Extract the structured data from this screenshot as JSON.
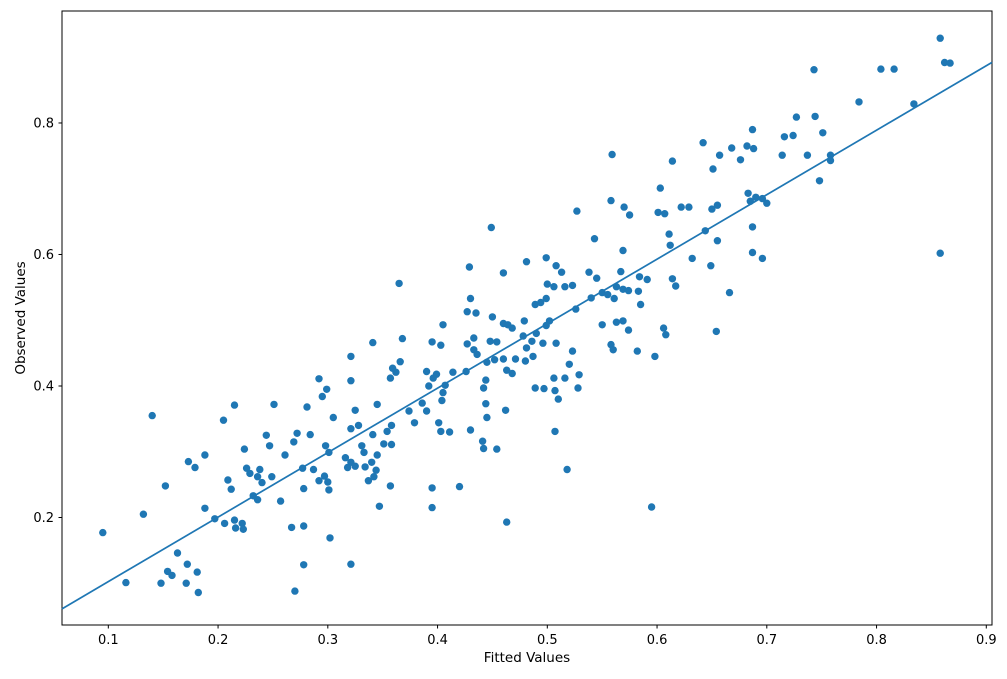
{
  "figure": {
    "background": "#ffffff",
    "xlabel": "Fitted Values",
    "ylabel": "Observed Values"
  },
  "chart_data": {
    "type": "scatter",
    "title": "",
    "xlabel": "Fitted Values",
    "ylabel": "Observed Values",
    "xlim": [
      0.0578,
      0.9052
    ],
    "ylim": [
      0.0365,
      0.9703
    ],
    "xticks": [
      0.1,
      0.2,
      0.3,
      0.4,
      0.5,
      0.6,
      0.7,
      0.8,
      0.9
    ],
    "xtick_labels": [
      "0.1",
      "0.2",
      "0.3",
      "0.4",
      "0.5",
      "0.6",
      "0.7",
      "0.8",
      "0.9"
    ],
    "yticks": [
      0.2,
      0.4,
      0.6,
      0.8
    ],
    "ytick_labels": [
      "0.2",
      "0.4",
      "0.6",
      "0.8"
    ],
    "grid": false,
    "legend": "none",
    "marker_color": "#1f77b4",
    "line_color": "#1f77b4",
    "fit_line": {
      "slope": 0.9808,
      "intercept": 0.0044
    },
    "points": [
      [
        0.858,
        0.929
      ],
      [
        0.862,
        0.892
      ],
      [
        0.867,
        0.891
      ],
      [
        0.743,
        0.881
      ],
      [
        0.804,
        0.882
      ],
      [
        0.816,
        0.882
      ],
      [
        0.784,
        0.832
      ],
      [
        0.834,
        0.829
      ],
      [
        0.727,
        0.809
      ],
      [
        0.744,
        0.81
      ],
      [
        0.751,
        0.785
      ],
      [
        0.716,
        0.779
      ],
      [
        0.724,
        0.781
      ],
      [
        0.682,
        0.765
      ],
      [
        0.688,
        0.761
      ],
      [
        0.714,
        0.751
      ],
      [
        0.737,
        0.751
      ],
      [
        0.758,
        0.751
      ],
      [
        0.758,
        0.743
      ],
      [
        0.748,
        0.712
      ],
      [
        0.7,
        0.678
      ],
      [
        0.696,
        0.685
      ],
      [
        0.858,
        0.602
      ],
      [
        0.559,
        0.752
      ],
      [
        0.614,
        0.742
      ],
      [
        0.642,
        0.77
      ],
      [
        0.651,
        0.73
      ],
      [
        0.657,
        0.751
      ],
      [
        0.668,
        0.762
      ],
      [
        0.676,
        0.744
      ],
      [
        0.687,
        0.79
      ],
      [
        0.683,
        0.693
      ],
      [
        0.685,
        0.681
      ],
      [
        0.69,
        0.687
      ],
      [
        0.603,
        0.701
      ],
      [
        0.558,
        0.682
      ],
      [
        0.527,
        0.666
      ],
      [
        0.57,
        0.672
      ],
      [
        0.575,
        0.66
      ],
      [
        0.601,
        0.664
      ],
      [
        0.607,
        0.662
      ],
      [
        0.622,
        0.672
      ],
      [
        0.629,
        0.672
      ],
      [
        0.65,
        0.669
      ],
      [
        0.655,
        0.675
      ],
      [
        0.687,
        0.603
      ],
      [
        0.543,
        0.624
      ],
      [
        0.611,
        0.631
      ],
      [
        0.612,
        0.614
      ],
      [
        0.644,
        0.636
      ],
      [
        0.655,
        0.621
      ],
      [
        0.687,
        0.642
      ],
      [
        0.569,
        0.606
      ],
      [
        0.632,
        0.594
      ],
      [
        0.649,
        0.583
      ],
      [
        0.481,
        0.589
      ],
      [
        0.499,
        0.595
      ],
      [
        0.508,
        0.583
      ],
      [
        0.513,
        0.573
      ],
      [
        0.538,
        0.573
      ],
      [
        0.545,
        0.564
      ],
      [
        0.567,
        0.574
      ],
      [
        0.584,
        0.566
      ],
      [
        0.591,
        0.562
      ],
      [
        0.583,
        0.544
      ],
      [
        0.614,
        0.563
      ],
      [
        0.617,
        0.552
      ],
      [
        0.5,
        0.555
      ],
      [
        0.506,
        0.551
      ],
      [
        0.516,
        0.551
      ],
      [
        0.523,
        0.553
      ],
      [
        0.55,
        0.542
      ],
      [
        0.555,
        0.539
      ],
      [
        0.563,
        0.551
      ],
      [
        0.569,
        0.547
      ],
      [
        0.574,
        0.545
      ],
      [
        0.54,
        0.534
      ],
      [
        0.561,
        0.533
      ],
      [
        0.585,
        0.524
      ],
      [
        0.489,
        0.524
      ],
      [
        0.494,
        0.527
      ],
      [
        0.499,
        0.533
      ],
      [
        0.526,
        0.517
      ],
      [
        0.666,
        0.542
      ],
      [
        0.502,
        0.499
      ],
      [
        0.499,
        0.492
      ],
      [
        0.479,
        0.499
      ],
      [
        0.49,
        0.48
      ],
      [
        0.486,
        0.468
      ],
      [
        0.508,
        0.465
      ],
      [
        0.55,
        0.493
      ],
      [
        0.563,
        0.497
      ],
      [
        0.569,
        0.499
      ],
      [
        0.574,
        0.485
      ],
      [
        0.606,
        0.488
      ],
      [
        0.608,
        0.478
      ],
      [
        0.654,
        0.483
      ],
      [
        0.558,
        0.463
      ],
      [
        0.56,
        0.455
      ],
      [
        0.582,
        0.453
      ],
      [
        0.523,
        0.453
      ],
      [
        0.52,
        0.433
      ],
      [
        0.598,
        0.445
      ],
      [
        0.481,
        0.458
      ],
      [
        0.496,
        0.465
      ],
      [
        0.506,
        0.412
      ],
      [
        0.516,
        0.412
      ],
      [
        0.529,
        0.417
      ],
      [
        0.528,
        0.397
      ],
      [
        0.489,
        0.397
      ],
      [
        0.497,
        0.396
      ],
      [
        0.507,
        0.393
      ],
      [
        0.51,
        0.38
      ],
      [
        0.696,
        0.594
      ],
      [
        0.449,
        0.641
      ],
      [
        0.429,
        0.581
      ],
      [
        0.46,
        0.572
      ],
      [
        0.365,
        0.556
      ],
      [
        0.43,
        0.533
      ],
      [
        0.427,
        0.513
      ],
      [
        0.435,
        0.511
      ],
      [
        0.45,
        0.505
      ],
      [
        0.46,
        0.495
      ],
      [
        0.464,
        0.493
      ],
      [
        0.468,
        0.488
      ],
      [
        0.405,
        0.493
      ],
      [
        0.478,
        0.476
      ],
      [
        0.341,
        0.466
      ],
      [
        0.368,
        0.472
      ],
      [
        0.395,
        0.467
      ],
      [
        0.403,
        0.462
      ],
      [
        0.433,
        0.473
      ],
      [
        0.427,
        0.464
      ],
      [
        0.433,
        0.455
      ],
      [
        0.436,
        0.448
      ],
      [
        0.448,
        0.468
      ],
      [
        0.454,
        0.467
      ],
      [
        0.46,
        0.441
      ],
      [
        0.445,
        0.436
      ],
      [
        0.452,
        0.44
      ],
      [
        0.471,
        0.441
      ],
      [
        0.487,
        0.445
      ],
      [
        0.48,
        0.438
      ],
      [
        0.321,
        0.445
      ],
      [
        0.414,
        0.421
      ],
      [
        0.463,
        0.424
      ],
      [
        0.468,
        0.419
      ],
      [
        0.359,
        0.427
      ],
      [
        0.362,
        0.421
      ],
      [
        0.357,
        0.412
      ],
      [
        0.39,
        0.422
      ],
      [
        0.396,
        0.412
      ],
      [
        0.426,
        0.422
      ],
      [
        0.292,
        0.411
      ],
      [
        0.299,
        0.395
      ],
      [
        0.295,
        0.384
      ],
      [
        0.321,
        0.408
      ],
      [
        0.444,
        0.409
      ],
      [
        0.442,
        0.397
      ],
      [
        0.392,
        0.4
      ],
      [
        0.399,
        0.418
      ],
      [
        0.407,
        0.401
      ],
      [
        0.405,
        0.39
      ],
      [
        0.404,
        0.378
      ],
      [
        0.281,
        0.368
      ],
      [
        0.325,
        0.363
      ],
      [
        0.345,
        0.372
      ],
      [
        0.386,
        0.374
      ],
      [
        0.39,
        0.362
      ],
      [
        0.374,
        0.362
      ],
      [
        0.444,
        0.373
      ],
      [
        0.445,
        0.352
      ],
      [
        0.462,
        0.363
      ],
      [
        0.366,
        0.437
      ],
      [
        0.14,
        0.355
      ],
      [
        0.215,
        0.371
      ],
      [
        0.205,
        0.348
      ],
      [
        0.251,
        0.372
      ],
      [
        0.305,
        0.352
      ],
      [
        0.321,
        0.335
      ],
      [
        0.328,
        0.34
      ],
      [
        0.341,
        0.326
      ],
      [
        0.354,
        0.331
      ],
      [
        0.358,
        0.34
      ],
      [
        0.379,
        0.344
      ],
      [
        0.401,
        0.344
      ],
      [
        0.403,
        0.331
      ],
      [
        0.411,
        0.33
      ],
      [
        0.43,
        0.333
      ],
      [
        0.441,
        0.316
      ],
      [
        0.442,
        0.305
      ],
      [
        0.454,
        0.304
      ],
      [
        0.507,
        0.331
      ],
      [
        0.518,
        0.273
      ],
      [
        0.595,
        0.216
      ],
      [
        0.272,
        0.328
      ],
      [
        0.284,
        0.326
      ],
      [
        0.298,
        0.309
      ],
      [
        0.301,
        0.299
      ],
      [
        0.316,
        0.291
      ],
      [
        0.321,
        0.284
      ],
      [
        0.318,
        0.276
      ],
      [
        0.325,
        0.278
      ],
      [
        0.331,
        0.309
      ],
      [
        0.333,
        0.299
      ],
      [
        0.351,
        0.312
      ],
      [
        0.358,
        0.311
      ],
      [
        0.345,
        0.295
      ],
      [
        0.34,
        0.284
      ],
      [
        0.334,
        0.277
      ],
      [
        0.344,
        0.272
      ],
      [
        0.277,
        0.275
      ],
      [
        0.287,
        0.273
      ],
      [
        0.297,
        0.263
      ],
      [
        0.292,
        0.256
      ],
      [
        0.3,
        0.254
      ],
      [
        0.278,
        0.244
      ],
      [
        0.301,
        0.242
      ],
      [
        0.337,
        0.256
      ],
      [
        0.342,
        0.262
      ],
      [
        0.357,
        0.248
      ],
      [
        0.347,
        0.217
      ],
      [
        0.395,
        0.245
      ],
      [
        0.42,
        0.247
      ],
      [
        0.395,
        0.215
      ],
      [
        0.463,
        0.193
      ],
      [
        0.278,
        0.187
      ],
      [
        0.302,
        0.169
      ],
      [
        0.278,
        0.128
      ],
      [
        0.321,
        0.129
      ],
      [
        0.27,
        0.088
      ],
      [
        0.244,
        0.325
      ],
      [
        0.247,
        0.309
      ],
      [
        0.224,
        0.304
      ],
      [
        0.188,
        0.295
      ],
      [
        0.173,
        0.285
      ],
      [
        0.179,
        0.276
      ],
      [
        0.261,
        0.295
      ],
      [
        0.269,
        0.315
      ],
      [
        0.226,
        0.275
      ],
      [
        0.229,
        0.267
      ],
      [
        0.238,
        0.273
      ],
      [
        0.236,
        0.262
      ],
      [
        0.24,
        0.253
      ],
      [
        0.232,
        0.233
      ],
      [
        0.236,
        0.227
      ],
      [
        0.249,
        0.262
      ],
      [
        0.257,
        0.225
      ],
      [
        0.152,
        0.248
      ],
      [
        0.209,
        0.257
      ],
      [
        0.212,
        0.243
      ],
      [
        0.132,
        0.205
      ],
      [
        0.188,
        0.214
      ],
      [
        0.197,
        0.198
      ],
      [
        0.206,
        0.191
      ],
      [
        0.215,
        0.196
      ],
      [
        0.222,
        0.191
      ],
      [
        0.216,
        0.184
      ],
      [
        0.223,
        0.182
      ],
      [
        0.095,
        0.177
      ],
      [
        0.163,
        0.146
      ],
      [
        0.172,
        0.129
      ],
      [
        0.181,
        0.117
      ],
      [
        0.154,
        0.118
      ],
      [
        0.158,
        0.112
      ],
      [
        0.148,
        0.1
      ],
      [
        0.171,
        0.1
      ],
      [
        0.182,
        0.086
      ],
      [
        0.116,
        0.101
      ],
      [
        0.267,
        0.185
      ]
    ]
  }
}
